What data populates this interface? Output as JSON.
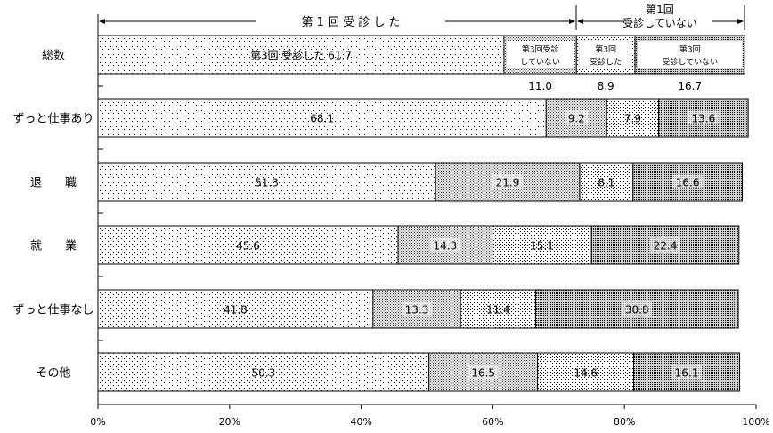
{
  "chart_data": {
    "type": "bar",
    "orientation": "horizontal",
    "stacked": true,
    "header": {
      "group1_label": "第 1 回 受 診 し た",
      "group2_label_line1": "第1回",
      "group2_label_line2": "受診していない"
    },
    "series": [
      {
        "name": "第3回 受診した",
        "group": "第1回受診した",
        "pattern": "dots-sparse"
      },
      {
        "name": "第3回受診していない",
        "group": "第1回受診した",
        "pattern": "dots-dense"
      },
      {
        "name": "第3回受診した",
        "group": "第1回受診していない",
        "pattern": "dots-medium"
      },
      {
        "name": "第3回受診していない",
        "group": "第1回受診していない",
        "pattern": "dots-darkest"
      }
    ],
    "legend_in_total_bar": {
      "seg1_text": "第3回 受診した 61.7",
      "seg2_line1": "第3回受診",
      "seg2_line2": "していない",
      "seg3_line1": "第3回",
      "seg3_line2": "受診した",
      "seg4_line1": "第3回",
      "seg4_line2": "受診していない"
    },
    "categories": [
      "総数",
      "ずっと仕事あり",
      "退　　職",
      "就　　業",
      "ずっと仕事なし",
      "その他"
    ],
    "values": [
      [
        61.7,
        11.0,
        8.9,
        16.7
      ],
      [
        68.1,
        9.2,
        7.9,
        13.6
      ],
      [
        51.3,
        21.9,
        8.1,
        16.6
      ],
      [
        45.6,
        14.3,
        15.1,
        22.4
      ],
      [
        41.8,
        13.3,
        11.4,
        30.8
      ],
      [
        50.3,
        16.5,
        14.6,
        16.1
      ]
    ],
    "total_row_values": [
      "11.0",
      "8.9",
      "16.7"
    ],
    "x_ticks": [
      "0%",
      "20%",
      "40%",
      "60%",
      "80%",
      "100%"
    ],
    "xlim": [
      0,
      100
    ],
    "grid": false
  }
}
